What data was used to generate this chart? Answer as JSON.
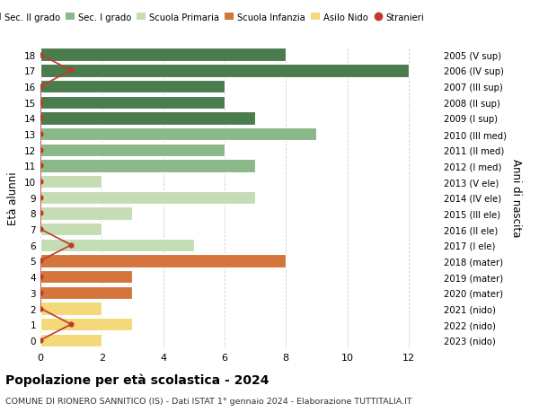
{
  "ages": [
    18,
    17,
    16,
    15,
    14,
    13,
    12,
    11,
    10,
    9,
    8,
    7,
    6,
    5,
    4,
    3,
    2,
    1,
    0
  ],
  "right_labels": [
    "2005 (V sup)",
    "2006 (IV sup)",
    "2007 (III sup)",
    "2008 (II sup)",
    "2009 (I sup)",
    "2010 (III med)",
    "2011 (II med)",
    "2012 (I med)",
    "2013 (V ele)",
    "2014 (IV ele)",
    "2015 (III ele)",
    "2016 (II ele)",
    "2017 (I ele)",
    "2018 (mater)",
    "2019 (mater)",
    "2020 (mater)",
    "2021 (nido)",
    "2022 (nido)",
    "2023 (nido)"
  ],
  "bar_values": [
    8,
    12,
    6,
    6,
    7,
    9,
    6,
    7,
    2,
    7,
    3,
    2,
    5,
    8,
    3,
    3,
    2,
    3,
    2
  ],
  "bar_colors": [
    "#4a7c4e",
    "#4a7c4e",
    "#4a7c4e",
    "#4a7c4e",
    "#4a7c4e",
    "#8ab888",
    "#8ab888",
    "#8ab888",
    "#c5ddb5",
    "#c5ddb5",
    "#c5ddb5",
    "#c5ddb5",
    "#c5ddb5",
    "#d4763b",
    "#d4763b",
    "#d4763b",
    "#f5d87a",
    "#f5d87a",
    "#f5d87a"
  ],
  "stranieri_x": [
    0,
    1,
    0,
    0,
    0,
    0,
    0,
    0,
    0,
    0,
    0,
    0,
    1,
    0,
    0,
    0,
    0,
    1,
    0
  ],
  "legend_labels": [
    "Sec. II grado",
    "Sec. I grado",
    "Scuola Primaria",
    "Scuola Infanzia",
    "Asilo Nido",
    "Stranieri"
  ],
  "legend_colors": [
    "#4a7c4e",
    "#8ab888",
    "#c5ddb5",
    "#d4763b",
    "#f5d87a",
    "#c0392b"
  ],
  "ylabel_left": "Età alunni",
  "ylabel_right": "Anni di nascita",
  "title": "Popolazione per età scolastica - 2024",
  "subtitle": "COMUNE DI RIONERO SANNITICO (IS) - Dati ISTAT 1° gennaio 2024 - Elaborazione TUTTITALIA.IT",
  "xlim": [
    0,
    13
  ],
  "ylim": [
    -0.5,
    18.5
  ],
  "xticks": [
    0,
    2,
    4,
    6,
    8,
    10,
    12
  ],
  "background_color": "#ffffff",
  "grid_color": "#d0d0d0",
  "stranieri_color": "#c0392b",
  "bar_height": 0.82,
  "bar_edgecolor": "#ffffff",
  "bar_linewidth": 0.8
}
